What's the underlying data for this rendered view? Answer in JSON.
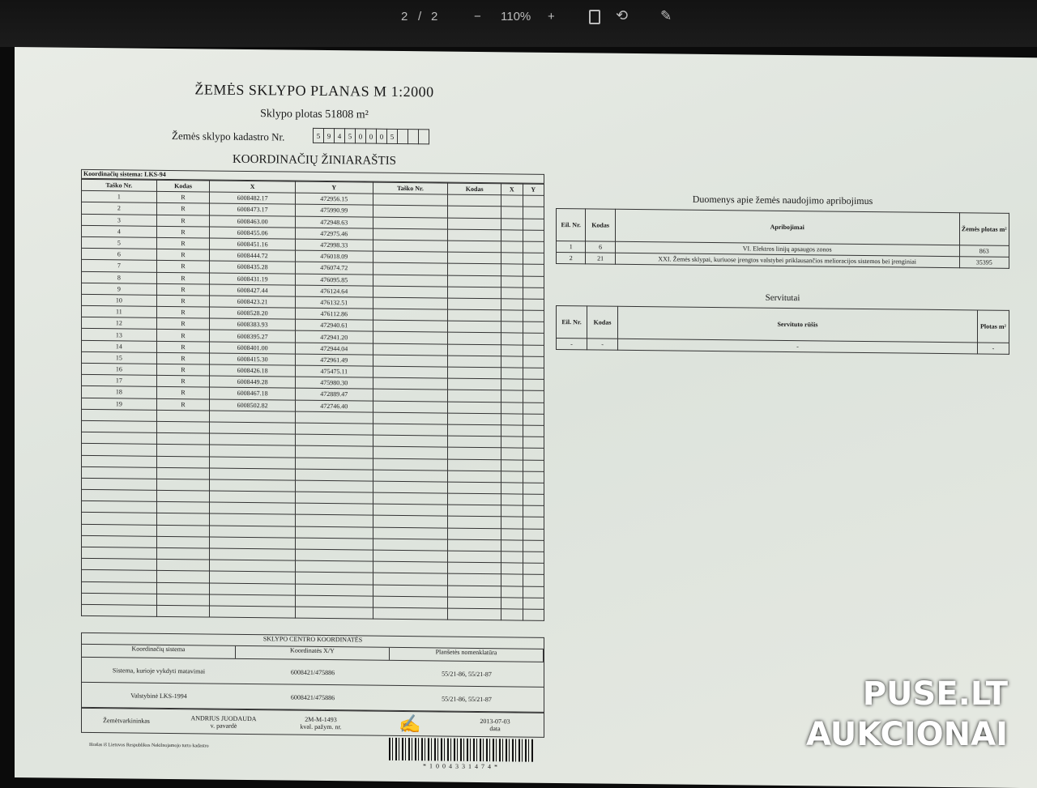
{
  "viewer": {
    "page_current": "2",
    "page_sep": "/",
    "page_total": "2",
    "zoom_out": "−",
    "zoom": "110%",
    "zoom_in": "+",
    "icons": [
      "fit-page-icon",
      "rotate-icon",
      "draw-icon"
    ]
  },
  "doc": {
    "title": "ŽEMĖS SKLYPO PLANAS M 1:2000",
    "area": "Sklypo plotas 51808 m²",
    "cadastre_label": "Žemės sklypo kadastro Nr.",
    "cadastre_digits": [
      "5",
      "9",
      "4",
      "5",
      "0",
      "0",
      "0",
      "5",
      "",
      "",
      ""
    ],
    "coords_title": "KOORDINAČIŲ ŽINIARAŠTIS",
    "coord_system": "Koordinačių sistema: LKS-94",
    "headers": [
      "Taško Nr.",
      "Kodas",
      "X",
      "Y",
      "Taško Nr.",
      "Kodas",
      "X",
      "Y"
    ],
    "rows": [
      [
        "1",
        "R",
        "6008482.17",
        "472956.15"
      ],
      [
        "2",
        "R",
        "6008473.17",
        "475990.99"
      ],
      [
        "3",
        "R",
        "6008463.00",
        "472948.63"
      ],
      [
        "4",
        "R",
        "6008455.06",
        "472975.46"
      ],
      [
        "5",
        "R",
        "6008451.16",
        "472998.33"
      ],
      [
        "6",
        "R",
        "6008444.72",
        "476018.09"
      ],
      [
        "7",
        "R",
        "6008435.28",
        "476074.72"
      ],
      [
        "8",
        "R",
        "6008431.19",
        "476095.85"
      ],
      [
        "9",
        "R",
        "6008427.44",
        "476124.64"
      ],
      [
        "10",
        "R",
        "6008423.21",
        "476132.51"
      ],
      [
        "11",
        "R",
        "6008528.20",
        "476112.86"
      ],
      [
        "12",
        "R",
        "6008383.93",
        "472940.61"
      ],
      [
        "13",
        "R",
        "6008395.27",
        "472941.20"
      ],
      [
        "14",
        "R",
        "6008401.00",
        "472944.04"
      ],
      [
        "15",
        "R",
        "6008415.30",
        "472961.49"
      ],
      [
        "16",
        "R",
        "6008426.18",
        "475475.11"
      ],
      [
        "17",
        "R",
        "6008449.28",
        "475980.30"
      ],
      [
        "18",
        "R",
        "6008467.18",
        "472889.47"
      ],
      [
        "19",
        "R",
        "6008502.82",
        "472746.40"
      ]
    ],
    "center": {
      "title": "SKLYPO CENTRO KOORDINATĖS",
      "headers": [
        "Koordinačių sistema",
        "Koordinatės X/Y",
        "Planšetės nomenklatūra"
      ],
      "rows": [
        [
          "Sistema, kurioje vykdyti matavimai",
          "6008421/475886",
          "55/21-86, 55/21-87"
        ],
        [
          "Valstybinė LKS-1994",
          "6008421/475886",
          "55/21-86, 55/21-87"
        ]
      ]
    },
    "surveyor": {
      "label": "Žemėtvarkininkas",
      "name": "ANDRIUS JUODAUDA",
      "name_caption": "v. pavardė",
      "cert": "2M-M-1493",
      "cert_caption": "kval. pažym. nr.",
      "date": "2013-07-03",
      "date_caption": "data"
    },
    "footnote": "Išrašas iš Lietuvos Respublikos Nekilnojamojo turto kadastro",
    "barcode": "*1004331474*"
  },
  "restrictions": {
    "title": "Duomenys apie žemės naudojimo apribojimus",
    "headers": [
      "Eil. Nr.",
      "Kodas",
      "Apribojimai",
      "Žemės plotas m²"
    ],
    "rows": [
      [
        "1",
        "6",
        "VI. Elektros linijų apsaugos zonos",
        "863"
      ],
      [
        "2",
        "21",
        "XXI. Žemės sklypai, kuriuose įrengtos valstybei priklausančios melioracijos sistemos bei įrenginiai",
        "35395"
      ]
    ]
  },
  "servitudes": {
    "title": "Servitutai",
    "headers": [
      "Eil. Nr.",
      "Kodas",
      "Servituto rūšis",
      "Plotas m²"
    ],
    "rows": [
      [
        "-",
        "-",
        "-",
        "-"
      ]
    ]
  },
  "watermark": {
    "line1": "PUSE.LT",
    "line2": "AUKCIONAI"
  }
}
